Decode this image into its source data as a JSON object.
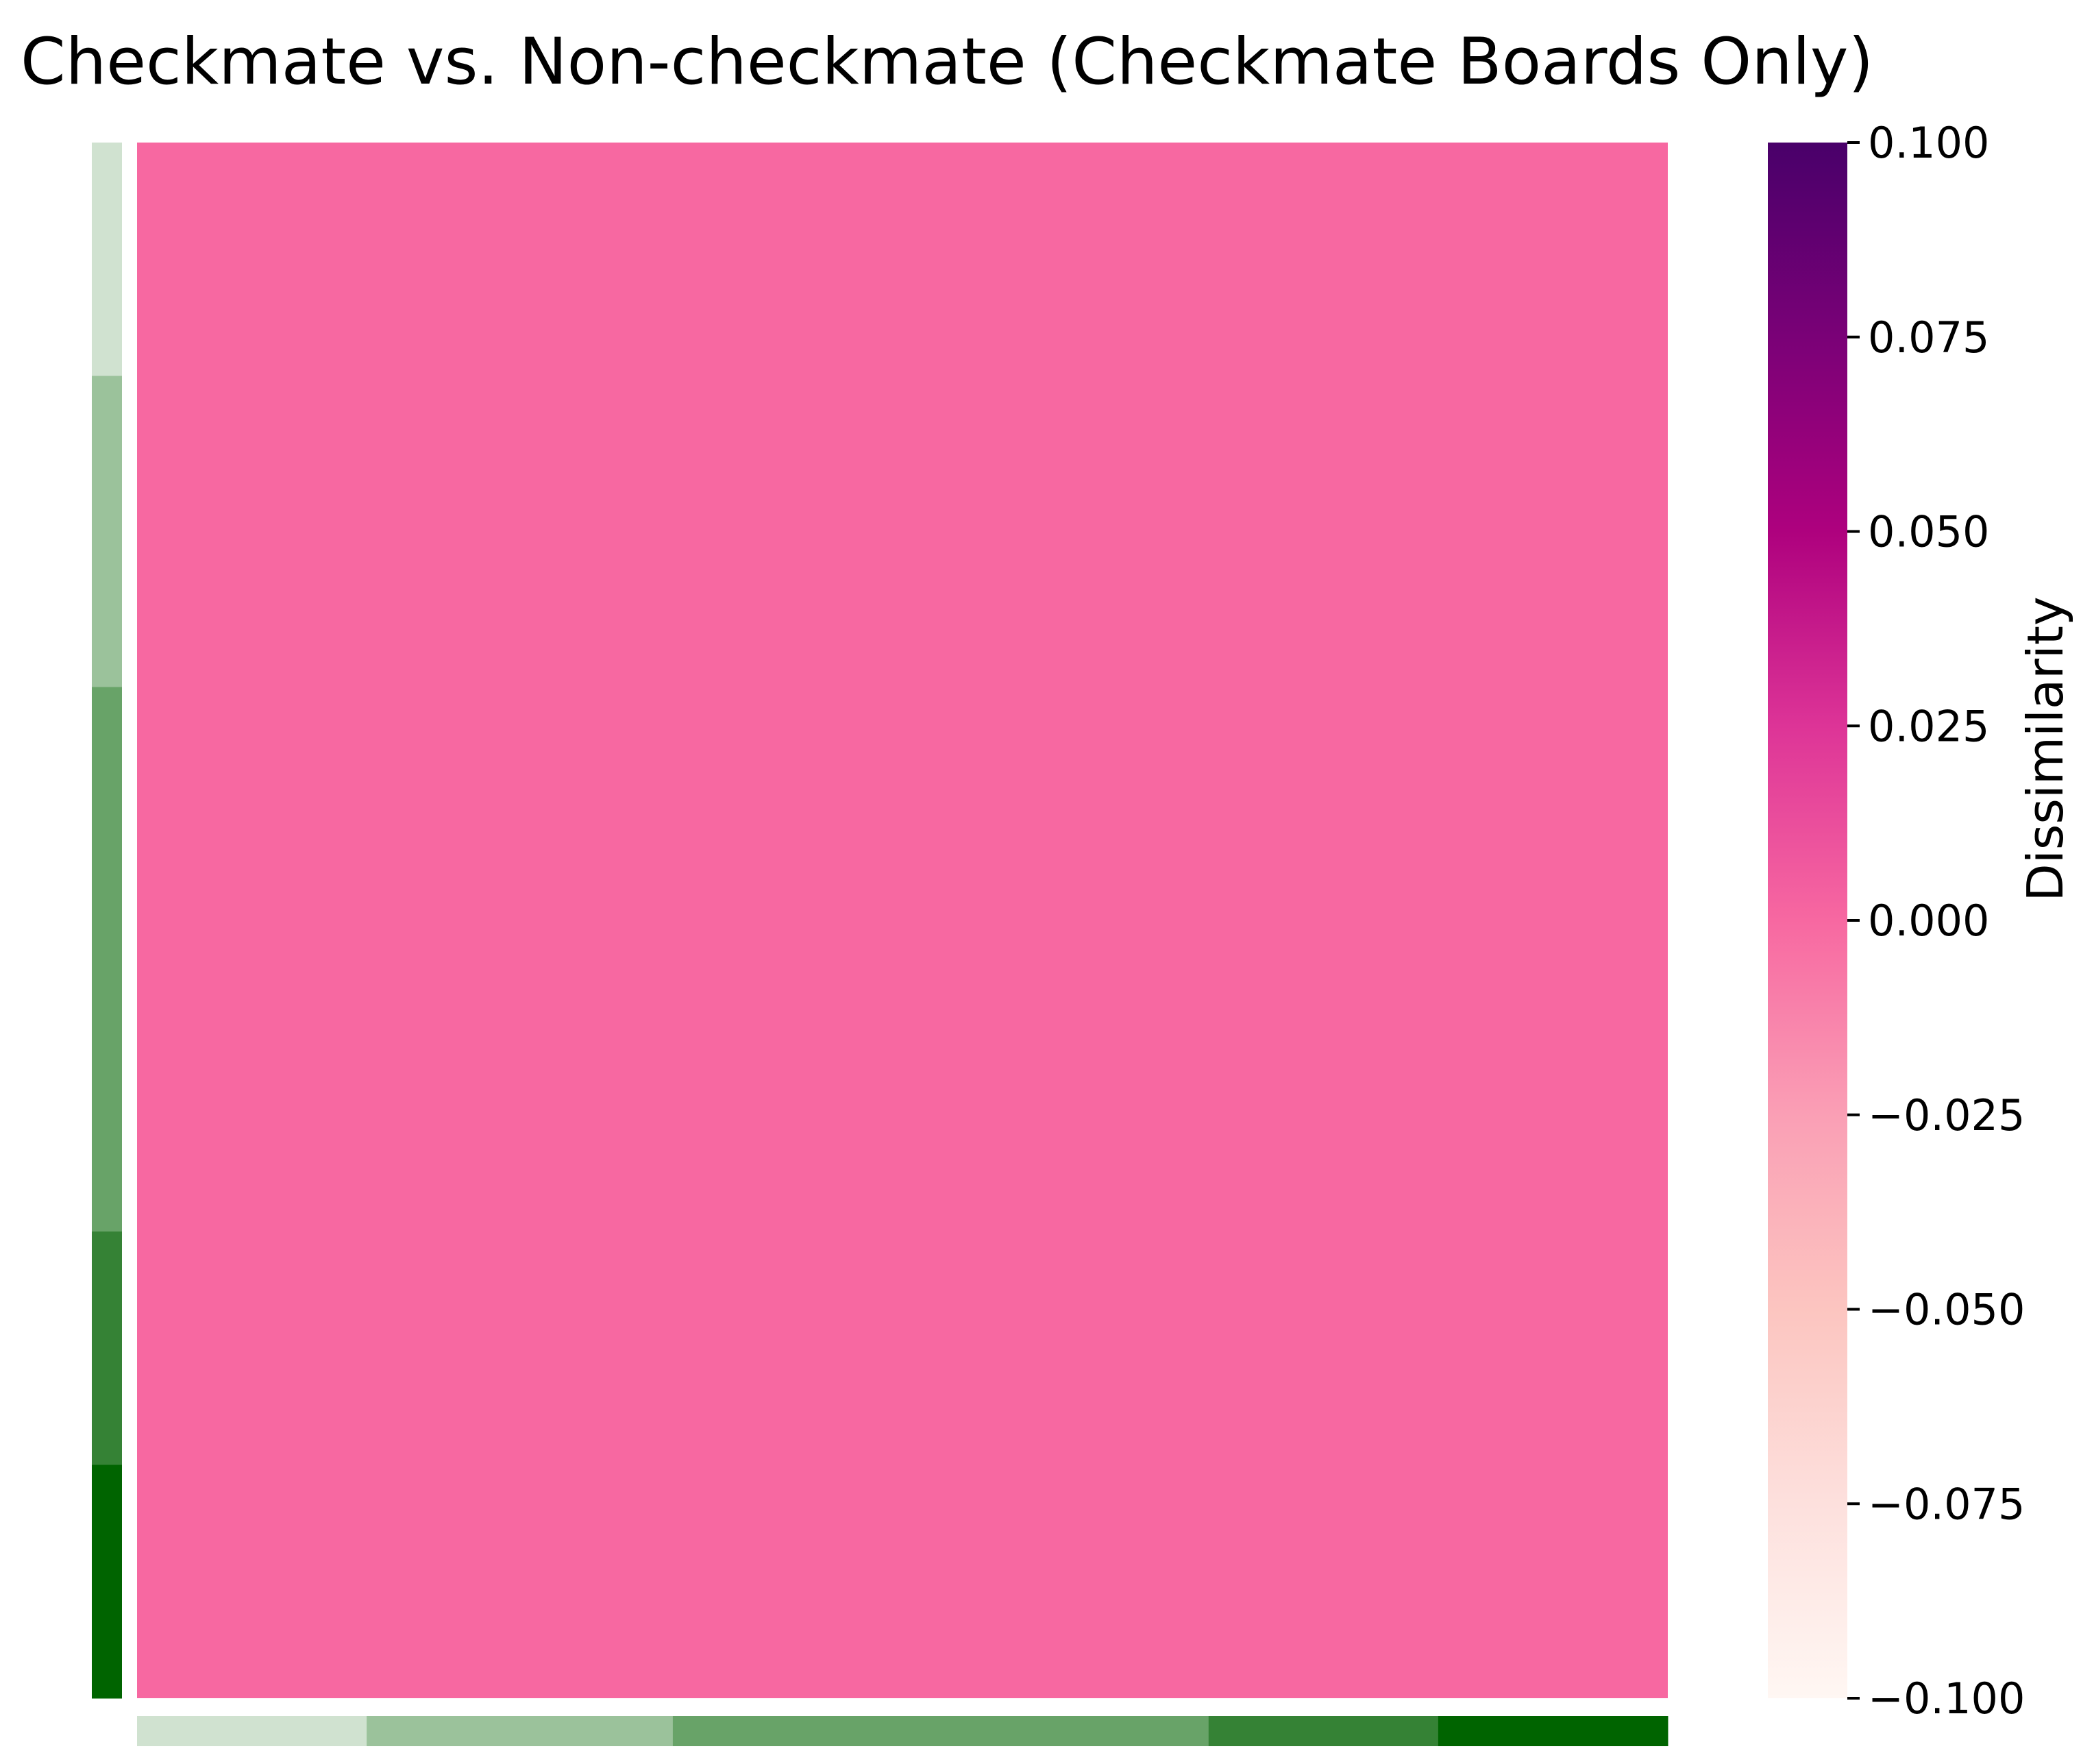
{
  "chart_data": {
    "type": "heatmap",
    "title": "Checkmate vs. Non-checkmate (Checkmate Boards Only)",
    "matrix_value": 0.0,
    "cell_color": "#f768a1",
    "colorbar": {
      "label": "Dissimilarity",
      "range": [
        -0.1,
        0.1
      ],
      "ticks": [
        0.1,
        0.075,
        0.05,
        0.025,
        0.0,
        -0.025,
        -0.05,
        -0.075,
        -0.1
      ],
      "tick_labels": [
        "0.100",
        "0.075",
        "0.050",
        "0.025",
        "0.000",
        "−0.025",
        "−0.050",
        "−0.075",
        "−0.100"
      ],
      "colormap": "RdPu",
      "stops": [
        "#fff7f3",
        "#fde0dd",
        "#fcc5c0",
        "#fa9fb5",
        "#f768a1",
        "#dd3497",
        "#ae017e",
        "#7a0177",
        "#49006a"
      ]
    },
    "group_annotation": {
      "groups": [
        {
          "fraction": 0.15,
          "color": "#d0e2d0"
        },
        {
          "fraction": 0.2,
          "color": "#9bc29b"
        },
        {
          "fraction": 0.35,
          "color": "#68a368"
        },
        {
          "fraction": 0.15,
          "color": "#358235"
        },
        {
          "fraction": 0.15,
          "color": "#006400"
        }
      ]
    }
  }
}
